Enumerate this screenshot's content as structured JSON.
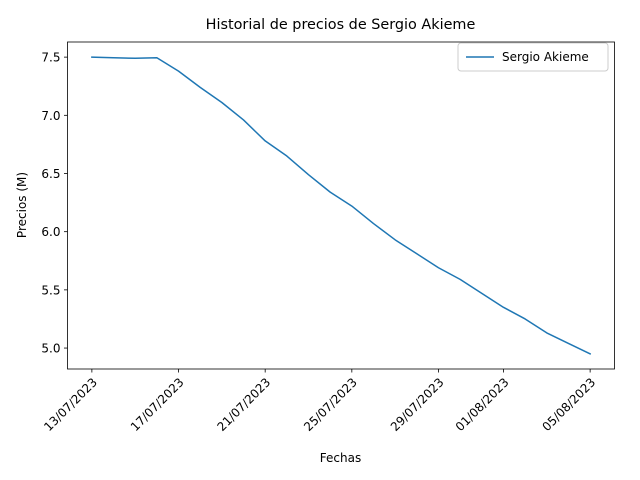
{
  "chart_data": {
    "type": "line",
    "title": "Historial de precios de Sergio Akieme",
    "xlabel": "Fechas",
    "ylabel": "Precios (M)",
    "x_tick_labels": [
      "13/07/2023",
      "17/07/2023",
      "21/07/2023",
      "25/07/2023",
      "29/07/2023",
      "01/08/2023",
      "05/08/2023"
    ],
    "x_tick_dates": [
      "2023-07-13",
      "2023-07-17",
      "2023-07-21",
      "2023-07-25",
      "2023-07-29",
      "2023-08-01",
      "2023-08-05"
    ],
    "y_ticks": [
      5.0,
      5.5,
      6.0,
      6.5,
      7.0,
      7.5
    ],
    "y_tick_labels": [
      "5.0",
      "5.5",
      "6.0",
      "6.5",
      "7.0",
      "7.5"
    ],
    "xlim": [
      "2023-07-11T21:00",
      "2023-08-06T03:00"
    ],
    "ylim": [
      4.82,
      7.63
    ],
    "grid": false,
    "legend_position": "top-right",
    "x_tick_rotation": 45,
    "series": [
      {
        "name": "Sergio Akieme",
        "color": "#1f77b4",
        "x": [
          "2023-07-13",
          "2023-07-14",
          "2023-07-15",
          "2023-07-16",
          "2023-07-17",
          "2023-07-18",
          "2023-07-19",
          "2023-07-20",
          "2023-07-21",
          "2023-07-22",
          "2023-07-23",
          "2023-07-24",
          "2023-07-25",
          "2023-07-26",
          "2023-07-27",
          "2023-07-28",
          "2023-07-29",
          "2023-07-30",
          "2023-07-31",
          "2023-08-01",
          "2023-08-02",
          "2023-08-03",
          "2023-08-04",
          "2023-08-05"
        ],
        "values": [
          7.5,
          7.495,
          7.49,
          7.495,
          7.38,
          7.24,
          7.11,
          6.96,
          6.78,
          6.65,
          6.49,
          6.34,
          6.22,
          6.07,
          5.93,
          5.81,
          5.69,
          5.59,
          5.47,
          5.35,
          5.25,
          5.13,
          5.04,
          4.95
        ]
      }
    ]
  }
}
